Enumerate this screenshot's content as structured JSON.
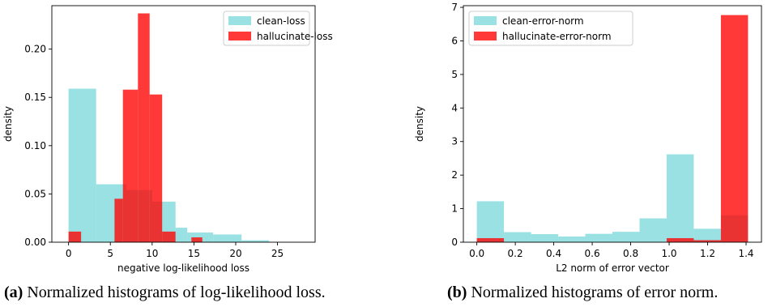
{
  "chart_data": [
    {
      "type": "bar",
      "subtype": "histogram-overlay",
      "xlabel": "negative log-likelihood loss",
      "ylabel": "density",
      "xlim": [
        -2,
        29.5
      ],
      "ylim": [
        0,
        0.245
      ],
      "xticks": [
        "0",
        "5",
        "10",
        "15",
        "20",
        "25"
      ],
      "yticks": [
        "0.00",
        "0.05",
        "0.10",
        "0.15",
        "0.20"
      ],
      "legend_position": "top-right",
      "series": [
        {
          "name": "clean-loss",
          "color": "#7fdadb",
          "bins": [
            {
              "x0": 0.0,
              "x1": 3.3,
              "value": 0.159
            },
            {
              "x0": 3.3,
              "x1": 6.9,
              "value": 0.06
            },
            {
              "x0": 6.9,
              "x1": 10.0,
              "value": 0.054
            },
            {
              "x0": 10.0,
              "x1": 12.8,
              "value": 0.042
            },
            {
              "x0": 12.8,
              "x1": 14.2,
              "value": 0.015
            },
            {
              "x0": 14.2,
              "x1": 17.3,
              "value": 0.01
            },
            {
              "x0": 17.3,
              "x1": 20.7,
              "value": 0.008
            },
            {
              "x0": 20.7,
              "x1": 24.0,
              "value": 0.002
            }
          ]
        },
        {
          "name": "hallucinate-loss",
          "color": "#ff0000",
          "bins": [
            {
              "x0": 0.0,
              "x1": 1.5,
              "value": 0.011
            },
            {
              "x0": 5.5,
              "x1": 6.5,
              "value": 0.045
            },
            {
              "x0": 6.5,
              "x1": 8.3,
              "value": 0.158
            },
            {
              "x0": 8.3,
              "x1": 9.7,
              "value": 0.237
            },
            {
              "x0": 9.7,
              "x1": 11.2,
              "value": 0.153
            },
            {
              "x0": 11.2,
              "x1": 12.8,
              "value": 0.011
            },
            {
              "x0": 14.7,
              "x1": 16.0,
              "value": 0.005
            }
          ]
        }
      ]
    },
    {
      "type": "bar",
      "subtype": "histogram-overlay",
      "xlabel": "L2 norm of error vector",
      "ylabel": "density",
      "xlim": [
        -0.07,
        1.48
      ],
      "ylim": [
        0,
        7.05
      ],
      "xticks": [
        "0.0",
        "0.2",
        "0.4",
        "0.6",
        "0.8",
        "1.0",
        "1.2",
        "1.4"
      ],
      "yticks": [
        "0",
        "1",
        "2",
        "3",
        "4",
        "5",
        "6",
        "7"
      ],
      "legend_position": "top-left",
      "series": [
        {
          "name": "clean-error-norm",
          "color": "#7fdadb",
          "bins": [
            {
              "x0": 0.0,
              "x1": 0.141,
              "value": 1.22
            },
            {
              "x0": 0.141,
              "x1": 0.282,
              "value": 0.3
            },
            {
              "x0": 0.282,
              "x1": 0.423,
              "value": 0.24
            },
            {
              "x0": 0.423,
              "x1": 0.564,
              "value": 0.17
            },
            {
              "x0": 0.564,
              "x1": 0.705,
              "value": 0.25
            },
            {
              "x0": 0.705,
              "x1": 0.846,
              "value": 0.31
            },
            {
              "x0": 0.846,
              "x1": 0.987,
              "value": 0.71
            },
            {
              "x0": 0.987,
              "x1": 1.128,
              "value": 2.62
            },
            {
              "x0": 1.128,
              "x1": 1.269,
              "value": 0.4
            },
            {
              "x0": 1.269,
              "x1": 1.41,
              "value": 0.8
            }
          ]
        },
        {
          "name": "hallucinate-error-norm",
          "color": "#ff0000",
          "bins": [
            {
              "x0": 0.0,
              "x1": 0.141,
              "value": 0.12
            },
            {
              "x0": 0.987,
              "x1": 1.128,
              "value": 0.12
            },
            {
              "x0": 1.128,
              "x1": 1.269,
              "value": 0.06
            },
            {
              "x0": 1.269,
              "x1": 1.41,
              "value": 6.77
            }
          ]
        }
      ]
    }
  ],
  "captions": {
    "a": {
      "label": "(a)",
      "text": " Normalized histograms of log-likelihood loss."
    },
    "b": {
      "label": "(b)",
      "text": " Normalized histograms of error norm."
    }
  }
}
